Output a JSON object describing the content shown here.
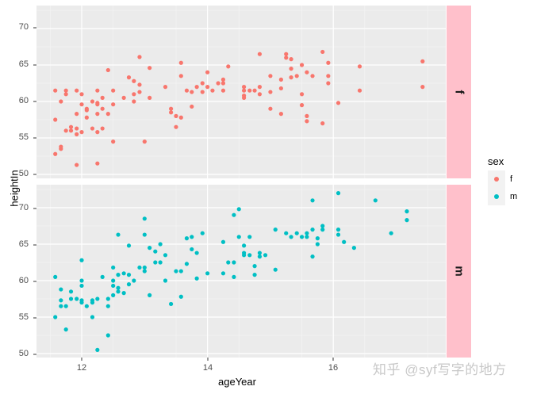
{
  "chart_data": {
    "type": "scatter",
    "facet": "sex (rows)",
    "xlabel": "ageYear",
    "ylabel": "heightIn",
    "xlim": [
      11.46,
      17.98
    ],
    "ylim": [
      49.2,
      73.0
    ],
    "x_ticks": [
      12,
      14,
      16
    ],
    "y_ticks": [
      50,
      55,
      60,
      65,
      70
    ],
    "grid": true,
    "legend": {
      "title": "sex",
      "position": "right",
      "entries": [
        {
          "label": "f",
          "color": "#F8766D"
        },
        {
          "label": "m",
          "color": "#00BFC4"
        }
      ]
    },
    "panels": [
      {
        "strip": "f",
        "color": "#F8766D",
        "points": [
          [
            11.58,
            61.5
          ],
          [
            11.75,
            61.5
          ],
          [
            11.75,
            61.0
          ],
          [
            11.92,
            61.5
          ],
          [
            12.0,
            61.0
          ],
          [
            12.25,
            61.5
          ],
          [
            12.5,
            61.5
          ],
          [
            12.33,
            60.5
          ],
          [
            11.67,
            60.0
          ],
          [
            12.0,
            59.6
          ],
          [
            12.17,
            60.0
          ],
          [
            12.25,
            59.8
          ],
          [
            12.25,
            59.6
          ],
          [
            12.08,
            59.0
          ],
          [
            12.08,
            58.8
          ],
          [
            12.33,
            59.0
          ],
          [
            12.5,
            59.6
          ],
          [
            11.92,
            58.3
          ],
          [
            12.08,
            57.8
          ],
          [
            12.25,
            58.3
          ],
          [
            12.42,
            58.3
          ],
          [
            11.58,
            57.5
          ],
          [
            11.83,
            56.5
          ],
          [
            11.75,
            56.0
          ],
          [
            11.83,
            56.0
          ],
          [
            11.92,
            56.3
          ],
          [
            11.92,
            55.5
          ],
          [
            12.0,
            55.8
          ],
          [
            12.17,
            56.3
          ],
          [
            12.33,
            56.3
          ],
          [
            12.25,
            55.8
          ],
          [
            12.5,
            54.5
          ],
          [
            13.0,
            54.5
          ],
          [
            11.67,
            53.8
          ],
          [
            11.67,
            53.5
          ],
          [
            11.58,
            52.8
          ],
          [
            11.92,
            51.3
          ],
          [
            12.25,
            51.5
          ],
          [
            12.92,
            66.1
          ],
          [
            13.08,
            64.6
          ],
          [
            12.42,
            64.3
          ],
          [
            12.75,
            63.3
          ],
          [
            12.83,
            62.8
          ],
          [
            12.92,
            62.3
          ],
          [
            12.92,
            61.3
          ],
          [
            12.83,
            61.0
          ],
          [
            12.67,
            60.5
          ],
          [
            13.08,
            60.5
          ],
          [
            12.83,
            60.0
          ],
          [
            13.33,
            62.0
          ],
          [
            13.42,
            59.0
          ],
          [
            13.5,
            58.0
          ],
          [
            13.58,
            65.3
          ],
          [
            13.58,
            63.5
          ],
          [
            13.67,
            61.5
          ],
          [
            13.75,
            61.3
          ],
          [
            13.83,
            62.0
          ],
          [
            13.75,
            59.3
          ],
          [
            13.58,
            57.8
          ],
          [
            13.5,
            56.5
          ],
          [
            13.42,
            58.5
          ],
          [
            14.0,
            64.0
          ],
          [
            13.92,
            62.5
          ],
          [
            14.0,
            62.0
          ],
          [
            14.08,
            61.5
          ],
          [
            13.92,
            61.3
          ],
          [
            14.17,
            62.5
          ],
          [
            14.25,
            63.0
          ],
          [
            14.25,
            62.5
          ],
          [
            14.25,
            61.5
          ],
          [
            14.33,
            64.8
          ],
          [
            14.58,
            62.0
          ],
          [
            14.58,
            61.5
          ],
          [
            14.67,
            61.5
          ],
          [
            14.75,
            61.5
          ],
          [
            14.83,
            61.0
          ],
          [
            14.58,
            60.8
          ],
          [
            14.58,
            60.5
          ],
          [
            14.83,
            66.5
          ],
          [
            14.83,
            62.0
          ],
          [
            15.0,
            63.5
          ],
          [
            15.17,
            63.0
          ],
          [
            15.17,
            61.8
          ],
          [
            15.0,
            61.3
          ],
          [
            15.0,
            59.0
          ],
          [
            15.17,
            58.3
          ],
          [
            15.25,
            66.5
          ],
          [
            15.33,
            65.8
          ],
          [
            15.5,
            65.0
          ],
          [
            15.5,
            61.0
          ],
          [
            15.5,
            59.5
          ],
          [
            15.58,
            57.3
          ],
          [
            15.58,
            58.0
          ],
          [
            15.33,
            63.3
          ],
          [
            15.42,
            63.5
          ],
          [
            15.33,
            64.5
          ],
          [
            15.58,
            64.0
          ],
          [
            15.67,
            63.5
          ],
          [
            15.83,
            66.8
          ],
          [
            15.92,
            65.3
          ],
          [
            15.92,
            63.5
          ],
          [
            15.92,
            62.5
          ],
          [
            15.83,
            57.0
          ],
          [
            16.08,
            59.8
          ],
          [
            16.42,
            64.8
          ],
          [
            16.42,
            61.5
          ],
          [
            17.42,
            65.5
          ],
          [
            17.42,
            62.0
          ],
          [
            15.25,
            66.0
          ]
        ]
      },
      {
        "strip": "m",
        "color": "#00BFC4",
        "points": [
          [
            11.58,
            60.5
          ],
          [
            11.67,
            58.8
          ],
          [
            11.67,
            57.3
          ],
          [
            11.75,
            56.5
          ],
          [
            11.83,
            58.5
          ],
          [
            11.58,
            55.0
          ],
          [
            11.75,
            53.3
          ],
          [
            11.67,
            56.5
          ],
          [
            11.83,
            57.5
          ],
          [
            11.92,
            57.5
          ],
          [
            12.0,
            62.8
          ],
          [
            12.0,
            60.0
          ],
          [
            12.0,
            59.3
          ],
          [
            12.0,
            57.3
          ],
          [
            12.0,
            57.0
          ],
          [
            12.08,
            56.5
          ],
          [
            12.17,
            57.3
          ],
          [
            12.17,
            57.0
          ],
          [
            12.25,
            57.5
          ],
          [
            12.42,
            57.5
          ],
          [
            12.42,
            56.5
          ],
          [
            12.17,
            55.0
          ],
          [
            12.42,
            52.5
          ],
          [
            12.25,
            50.5
          ],
          [
            12.33,
            60.5
          ],
          [
            12.5,
            61.8
          ],
          [
            12.5,
            60.0
          ],
          [
            12.5,
            59.3
          ],
          [
            12.58,
            58.5
          ],
          [
            12.58,
            59.0
          ],
          [
            12.58,
            60.8
          ],
          [
            12.67,
            61.0
          ],
          [
            12.75,
            60.8
          ],
          [
            12.75,
            59.5
          ],
          [
            12.83,
            60.0
          ],
          [
            12.58,
            66.3
          ],
          [
            12.75,
            64.8
          ],
          [
            12.5,
            58.0
          ],
          [
            12.67,
            58.3
          ],
          [
            12.92,
            61.8
          ],
          [
            13.0,
            61.8
          ],
          [
            13.0,
            61.3
          ],
          [
            13.08,
            64.5
          ],
          [
            13.0,
            68.5
          ],
          [
            13.0,
            66.3
          ],
          [
            13.25,
            65.0
          ],
          [
            13.17,
            64.0
          ],
          [
            13.17,
            62.5
          ],
          [
            13.08,
            58.0
          ],
          [
            13.33,
            63.5
          ],
          [
            13.25,
            62.5
          ],
          [
            13.33,
            60.0
          ],
          [
            13.5,
            61.3
          ],
          [
            13.42,
            56.8
          ],
          [
            13.58,
            57.8
          ],
          [
            13.58,
            61.3
          ],
          [
            13.67,
            62.3
          ],
          [
            13.75,
            66.0
          ],
          [
            13.75,
            64.3
          ],
          [
            13.83,
            63.8
          ],
          [
            13.67,
            65.8
          ],
          [
            13.92,
            66.5
          ],
          [
            14.0,
            61.0
          ],
          [
            13.83,
            60.3
          ],
          [
            14.25,
            65.3
          ],
          [
            14.33,
            62.5
          ],
          [
            14.25,
            61.0
          ],
          [
            14.42,
            60.5
          ],
          [
            14.42,
            62.5
          ],
          [
            14.5,
            69.8
          ],
          [
            14.42,
            69.0
          ],
          [
            14.5,
            66.0
          ],
          [
            14.58,
            64.8
          ],
          [
            14.58,
            63.8
          ],
          [
            14.58,
            63.5
          ],
          [
            14.67,
            66.0
          ],
          [
            14.67,
            63.5
          ],
          [
            14.75,
            62.0
          ],
          [
            14.75,
            60.8
          ],
          [
            14.83,
            63.8
          ],
          [
            14.83,
            63.3
          ],
          [
            14.92,
            63.5
          ],
          [
            15.08,
            61.5
          ],
          [
            15.08,
            67.0
          ],
          [
            15.25,
            66.5
          ],
          [
            15.33,
            66.0
          ],
          [
            15.42,
            66.5
          ],
          [
            15.5,
            66.0
          ],
          [
            15.58,
            66.5
          ],
          [
            15.58,
            66.0
          ],
          [
            15.67,
            67.0
          ],
          [
            15.67,
            71.0
          ],
          [
            15.67,
            63.3
          ],
          [
            15.75,
            65.0
          ],
          [
            15.75,
            65.8
          ],
          [
            15.83,
            67.0
          ],
          [
            15.83,
            67.5
          ],
          [
            16.08,
            72.0
          ],
          [
            16.08,
            66.3
          ],
          [
            16.08,
            67.0
          ],
          [
            16.17,
            65.3
          ],
          [
            16.33,
            64.5
          ],
          [
            16.67,
            71.0
          ],
          [
            16.92,
            66.5
          ],
          [
            17.17,
            69.5
          ],
          [
            17.17,
            68.3
          ]
        ]
      }
    ]
  },
  "axis": {
    "xlabel": "ageYear",
    "ylabel": "heightIn",
    "x_tick_labels": [
      "12",
      "14",
      "16"
    ],
    "y_tick_labels": [
      "70",
      "65",
      "60",
      "55",
      "50"
    ]
  },
  "strips": {
    "f": "f",
    "m": "m"
  },
  "legend": {
    "title": "sex",
    "f_label": "f",
    "m_label": "m",
    "f_color": "#F8766D",
    "m_color": "#00BFC4"
  },
  "watermark": "知乎 @syf写字的地方"
}
